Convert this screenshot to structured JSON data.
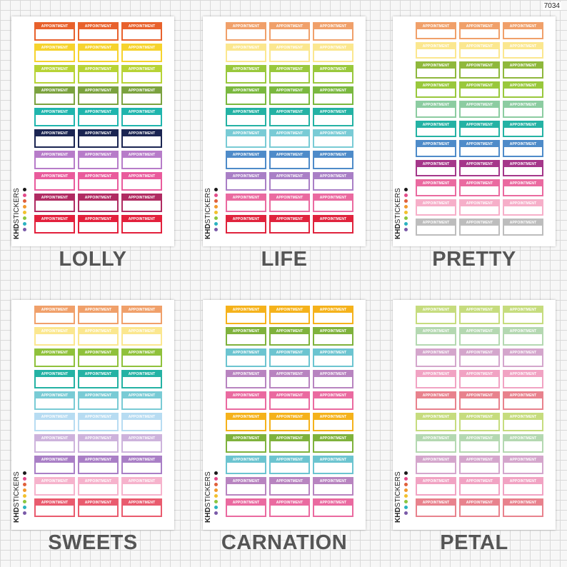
{
  "product_code": "7034",
  "sticker_label": "APPOINTMENT",
  "brand": {
    "bold": "KHD",
    "regular": "STICKERS"
  },
  "brand_dots": [
    "#1a1a1a",
    "#e34b8b",
    "#e0603a",
    "#f29a2e",
    "#f2c12e",
    "#8cc63f",
    "#2ab3c0",
    "#7a5aa8"
  ],
  "sheets": [
    {
      "name": "LOLLY",
      "colors": [
        "#e8612c",
        "#f6d32d",
        "#b7d335",
        "#7ba23f",
        "#1fb5ad",
        "#1b2552",
        "#b77cc9",
        "#e95b9c",
        "#b02b62",
        "#e3203c"
      ]
    },
    {
      "name": "LIFE",
      "colors": [
        "#f0a06a",
        "#fbe78f",
        "#99c83c",
        "#7ab83f",
        "#24b2a4",
        "#79cbd5",
        "#4e8bc9",
        "#a97fc6",
        "#ea6aa0",
        "#e0233d"
      ]
    },
    {
      "name": "PRETTY",
      "colors": [
        "#f0a06a",
        "#fbe78f",
        "#8fb83c",
        "#99c83c",
        "#8ccca1",
        "#24b2a4",
        "#4e8bc9",
        "#a5378a",
        "#ea6aa0",
        "#f6afc9",
        "#bdbdbd"
      ]
    },
    {
      "name": "SWEETS",
      "colors": [
        "#f0a06a",
        "#fbe78f",
        "#8fc13b",
        "#24b2a4",
        "#79cbd5",
        "#b7dcf2",
        "#cdb3dc",
        "#a97fc6",
        "#f6b3cc",
        "#e95b6e"
      ]
    },
    {
      "name": "CARNATION",
      "colors": [
        "#f5b21b",
        "#7fb23c",
        "#6cc4d0",
        "#b884c0",
        "#ea6aa0",
        "#f5b21b",
        "#7fb23c",
        "#6cc4d0",
        "#b884c0",
        "#ea6aa0"
      ]
    },
    {
      "name": "PETAL",
      "colors": [
        "#c6dc7e",
        "#b4d8b1",
        "#d4a6cc",
        "#f1a3c3",
        "#e8828d",
        "#c6dc7e",
        "#b4d8b1",
        "#d4a6cc",
        "#f1a3c3",
        "#e8828d"
      ]
    }
  ]
}
